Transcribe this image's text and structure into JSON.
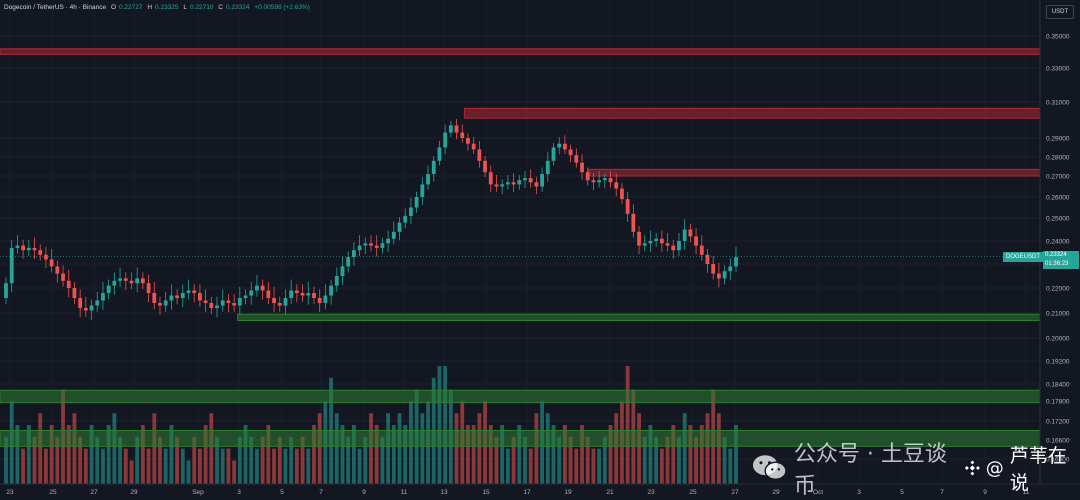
{
  "header": {
    "symbol": "Dogecoin / TetherUS · 4h · Binance",
    "open_label": "O",
    "open_value": "0.22727",
    "high_label": "H",
    "high_value": "0.23325",
    "low_label": "L",
    "low_value": "0.22710",
    "close_label": "C",
    "close_value": "0.23324",
    "change": "+0.00598 (+2.63%)"
  },
  "currency": "USDT",
  "price_tag": {
    "symbol": "DOGEUSDT",
    "price": "0.23324",
    "countdown": "01:36:23"
  },
  "price_axis_labels": [
    "0.35000",
    "0.33000",
    "0.31000",
    "0.29000",
    "0.28000",
    "0.27000",
    "0.26000",
    "0.25000",
    "0.24000",
    "0.23000",
    "0.22000",
    "0.21000",
    "0.20000",
    "0.19200",
    "0.18400",
    "0.17800",
    "0.17200",
    "0.16600",
    "0.16000"
  ],
  "date_axis_labels": [
    "23",
    "25",
    "27",
    "29",
    "Sep",
    "3",
    "5",
    "7",
    "9",
    "11",
    "13",
    "15",
    "17",
    "19",
    "21",
    "23",
    "25",
    "27",
    "29",
    "Oct",
    "3",
    "5",
    "7",
    "9",
    "11"
  ],
  "watermark": {
    "channel": "公众号 · 土豆谈币",
    "author": "芦苇在说",
    "at": "@"
  },
  "colors": {
    "up": "#26a69a",
    "down": "#ef5350",
    "resistance": "#b22833",
    "support": "#2e7d32",
    "background": "#131722"
  },
  "chart_data": {
    "type": "candlestick",
    "interval": "4h",
    "ylim": [
      0.158,
      0.357
    ],
    "close_series": [
      0.222,
      0.237,
      0.238,
      0.236,
      0.237,
      0.236,
      0.234,
      0.232,
      0.229,
      0.226,
      0.223,
      0.22,
      0.216,
      0.212,
      0.211,
      0.213,
      0.215,
      0.218,
      0.221,
      0.223,
      0.224,
      0.223,
      0.222,
      0.224,
      0.222,
      0.218,
      0.214,
      0.213,
      0.215,
      0.217,
      0.216,
      0.218,
      0.219,
      0.218,
      0.215,
      0.214,
      0.212,
      0.213,
      0.215,
      0.214,
      0.213,
      0.216,
      0.217,
      0.219,
      0.221,
      0.219,
      0.216,
      0.214,
      0.213,
      0.216,
      0.219,
      0.218,
      0.217,
      0.218,
      0.216,
      0.214,
      0.217,
      0.221,
      0.225,
      0.229,
      0.233,
      0.236,
      0.238,
      0.239,
      0.238,
      0.237,
      0.239,
      0.241,
      0.244,
      0.248,
      0.251,
      0.255,
      0.26,
      0.266,
      0.271,
      0.278,
      0.285,
      0.293,
      0.297,
      0.293,
      0.29,
      0.287,
      0.284,
      0.278,
      0.272,
      0.266,
      0.265,
      0.266,
      0.267,
      0.266,
      0.268,
      0.269,
      0.267,
      0.265,
      0.271,
      0.278,
      0.285,
      0.287,
      0.284,
      0.281,
      0.277,
      0.272,
      0.268,
      0.267,
      0.268,
      0.269,
      0.267,
      0.264,
      0.259,
      0.252,
      0.244,
      0.238,
      0.239,
      0.24,
      0.241,
      0.239,
      0.238,
      0.236,
      0.24,
      0.245,
      0.242,
      0.238,
      0.234,
      0.23,
      0.226,
      0.224,
      0.227,
      0.229,
      0.233
    ],
    "volume_series": [
      0.4,
      0.7,
      0.5,
      0.3,
      0.5,
      0.4,
      0.6,
      0.3,
      0.5,
      0.4,
      0.8,
      0.5,
      0.6,
      0.4,
      0.3,
      0.5,
      0.4,
      0.3,
      0.5,
      0.6,
      0.4,
      0.3,
      0.2,
      0.4,
      0.5,
      0.3,
      0.6,
      0.4,
      0.3,
      0.5,
      0.4,
      0.3,
      0.2,
      0.4,
      0.3,
      0.5,
      0.6,
      0.4,
      0.3,
      0.3,
      0.2,
      0.4,
      0.5,
      0.4,
      0.3,
      0.4,
      0.5,
      0.3,
      0.4,
      0.3,
      0.4,
      0.3,
      0.4,
      0.3,
      0.5,
      0.6,
      0.7,
      0.9,
      0.6,
      0.5,
      0.4,
      0.5,
      0.3,
      0.4,
      0.6,
      0.5,
      0.4,
      0.6,
      0.5,
      0.6,
      0.5,
      0.7,
      0.8,
      0.6,
      0.7,
      0.9,
      1.0,
      1.0,
      0.8,
      0.6,
      0.7,
      0.5,
      0.5,
      0.6,
      0.7,
      0.5,
      0.4,
      0.5,
      0.3,
      0.4,
      0.5,
      0.4,
      0.3,
      0.6,
      0.7,
      0.6,
      0.5,
      0.4,
      0.5,
      0.4,
      0.3,
      0.5,
      0.4,
      0.3,
      0.3,
      0.4,
      0.5,
      0.6,
      0.7,
      1.0,
      0.8,
      0.6,
      0.4,
      0.5,
      0.4,
      0.3,
      0.4,
      0.5,
      0.4,
      0.6,
      0.5,
      0.4,
      0.5,
      0.6,
      0.8,
      0.6,
      0.4,
      0.3,
      0.5
    ],
    "zones": [
      {
        "kind": "resistance",
        "from": 0.3385,
        "to": 0.342,
        "start": 0
      },
      {
        "kind": "resistance",
        "from": 0.301,
        "to": 0.3065,
        "start": 0.43
      },
      {
        "kind": "resistance",
        "from": 0.27,
        "to": 0.2735,
        "start": 0.545
      },
      {
        "kind": "support",
        "from": 0.207,
        "to": 0.2095,
        "start": 0.22
      },
      {
        "kind": "support",
        "from": 0.1775,
        "to": 0.1818,
        "start": 0
      },
      {
        "kind": "support",
        "from": 0.164,
        "to": 0.169,
        "start": 0
      }
    ],
    "last_price": 0.23324
  }
}
